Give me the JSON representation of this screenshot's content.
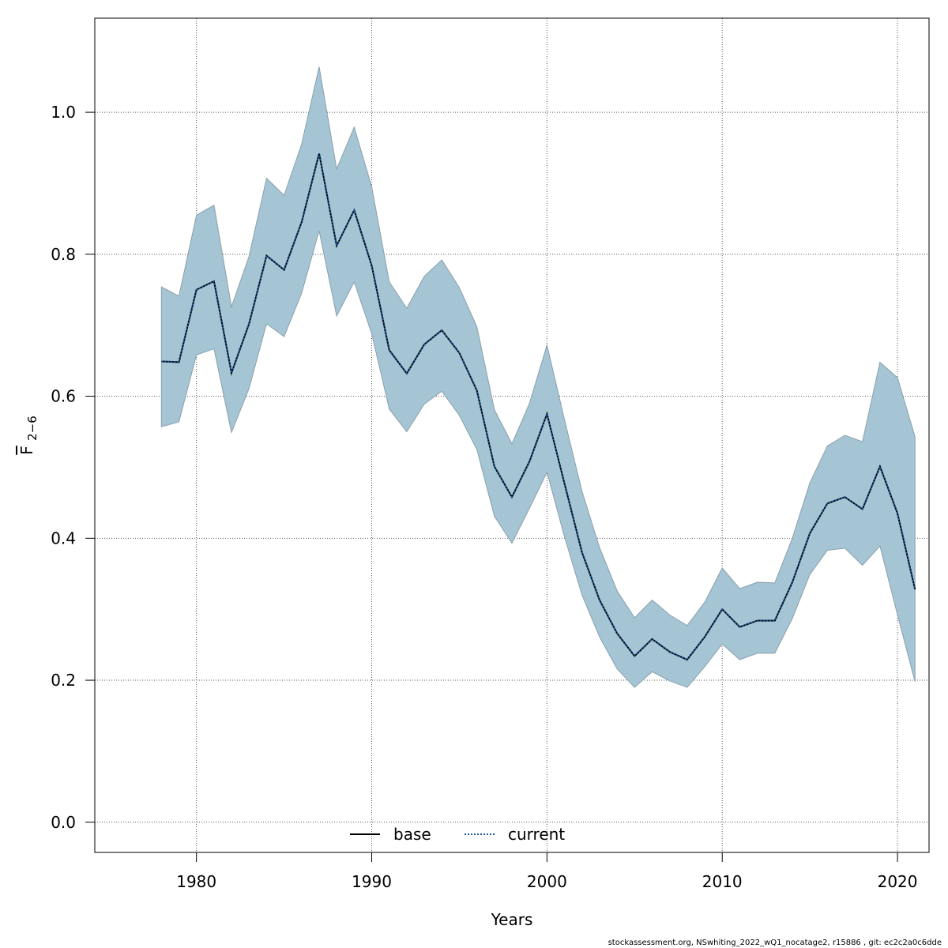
{
  "chart_data": {
    "type": "line",
    "xlabel": "Years",
    "ylabel_main": "F",
    "ylabel_sub": "2−6",
    "xlim": [
      1974.2,
      2021.8
    ],
    "ylim": [
      -0.0425,
      1.1325
    ],
    "x_ticks": [
      1980,
      1990,
      2000,
      2010,
      2020
    ],
    "y_ticks": [
      0.0,
      0.2,
      0.4,
      0.6,
      0.8,
      1.0
    ],
    "y_tick_labels": [
      "0.0",
      "0.2",
      "0.4",
      "0.6",
      "0.8",
      "1.0"
    ],
    "grid": true,
    "legend_position": "bottom",
    "years": [
      1978,
      1979,
      1980,
      1981,
      1982,
      1983,
      1984,
      1985,
      1986,
      1987,
      1988,
      1989,
      1990,
      1991,
      1992,
      1993,
      1994,
      1995,
      1996,
      1997,
      1998,
      1999,
      2000,
      2001,
      2002,
      2003,
      2004,
      2005,
      2006,
      2007,
      2008,
      2009,
      2010,
      2011,
      2012,
      2013,
      2014,
      2015,
      2016,
      2017,
      2018,
      2019,
      2020,
      2021
    ],
    "series": [
      {
        "name": "base",
        "style": "solid",
        "color": "#000000",
        "values": [
          0.649,
          0.648,
          0.75,
          0.762,
          0.633,
          0.702,
          0.798,
          0.778,
          0.845,
          0.942,
          0.812,
          0.862,
          0.784,
          0.665,
          0.632,
          0.673,
          0.693,
          0.661,
          0.608,
          0.501,
          0.458,
          0.508,
          0.575,
          0.477,
          0.38,
          0.313,
          0.266,
          0.234,
          0.258,
          0.24,
          0.229,
          0.261,
          0.3,
          0.275,
          0.284,
          0.284,
          0.338,
          0.407,
          0.449,
          0.458,
          0.441,
          0.501,
          0.435,
          0.328
        ]
      },
      {
        "name": "current",
        "style": "dotted",
        "color": "#1f5a9e",
        "values": [
          0.649,
          0.648,
          0.75,
          0.762,
          0.633,
          0.702,
          0.798,
          0.778,
          0.845,
          0.942,
          0.812,
          0.862,
          0.784,
          0.665,
          0.632,
          0.673,
          0.693,
          0.661,
          0.608,
          0.501,
          0.458,
          0.508,
          0.575,
          0.477,
          0.38,
          0.313,
          0.266,
          0.234,
          0.258,
          0.24,
          0.229,
          0.261,
          0.3,
          0.275,
          0.284,
          0.284,
          0.338,
          0.407,
          0.449,
          0.458,
          0.441,
          0.501,
          0.435,
          0.328
        ]
      }
    ],
    "confidence_band": {
      "color": "#a5c4d4",
      "stroke": "#8aa0ad",
      "upper": [
        0.754,
        0.741,
        0.855,
        0.869,
        0.726,
        0.797,
        0.907,
        0.883,
        0.955,
        1.064,
        0.92,
        0.979,
        0.895,
        0.761,
        0.724,
        0.769,
        0.792,
        0.753,
        0.698,
        0.581,
        0.533,
        0.59,
        0.672,
        0.567,
        0.466,
        0.387,
        0.326,
        0.288,
        0.313,
        0.292,
        0.277,
        0.31,
        0.358,
        0.329,
        0.338,
        0.337,
        0.4,
        0.478,
        0.53,
        0.545,
        0.536,
        0.648,
        0.626,
        0.543
      ],
      "lower": [
        0.557,
        0.564,
        0.658,
        0.667,
        0.549,
        0.611,
        0.702,
        0.684,
        0.745,
        0.833,
        0.713,
        0.761,
        0.688,
        0.582,
        0.55,
        0.589,
        0.607,
        0.573,
        0.525,
        0.431,
        0.393,
        0.442,
        0.493,
        0.402,
        0.32,
        0.261,
        0.216,
        0.19,
        0.212,
        0.199,
        0.19,
        0.219,
        0.251,
        0.229,
        0.238,
        0.238,
        0.287,
        0.349,
        0.383,
        0.386,
        0.362,
        0.389,
        0.292,
        0.198
      ]
    }
  },
  "footer_text": "stockassessment.org, NSwhiting_2022_wQ1_nocatage2, r15886 , git: ec2c2a0c6dde"
}
